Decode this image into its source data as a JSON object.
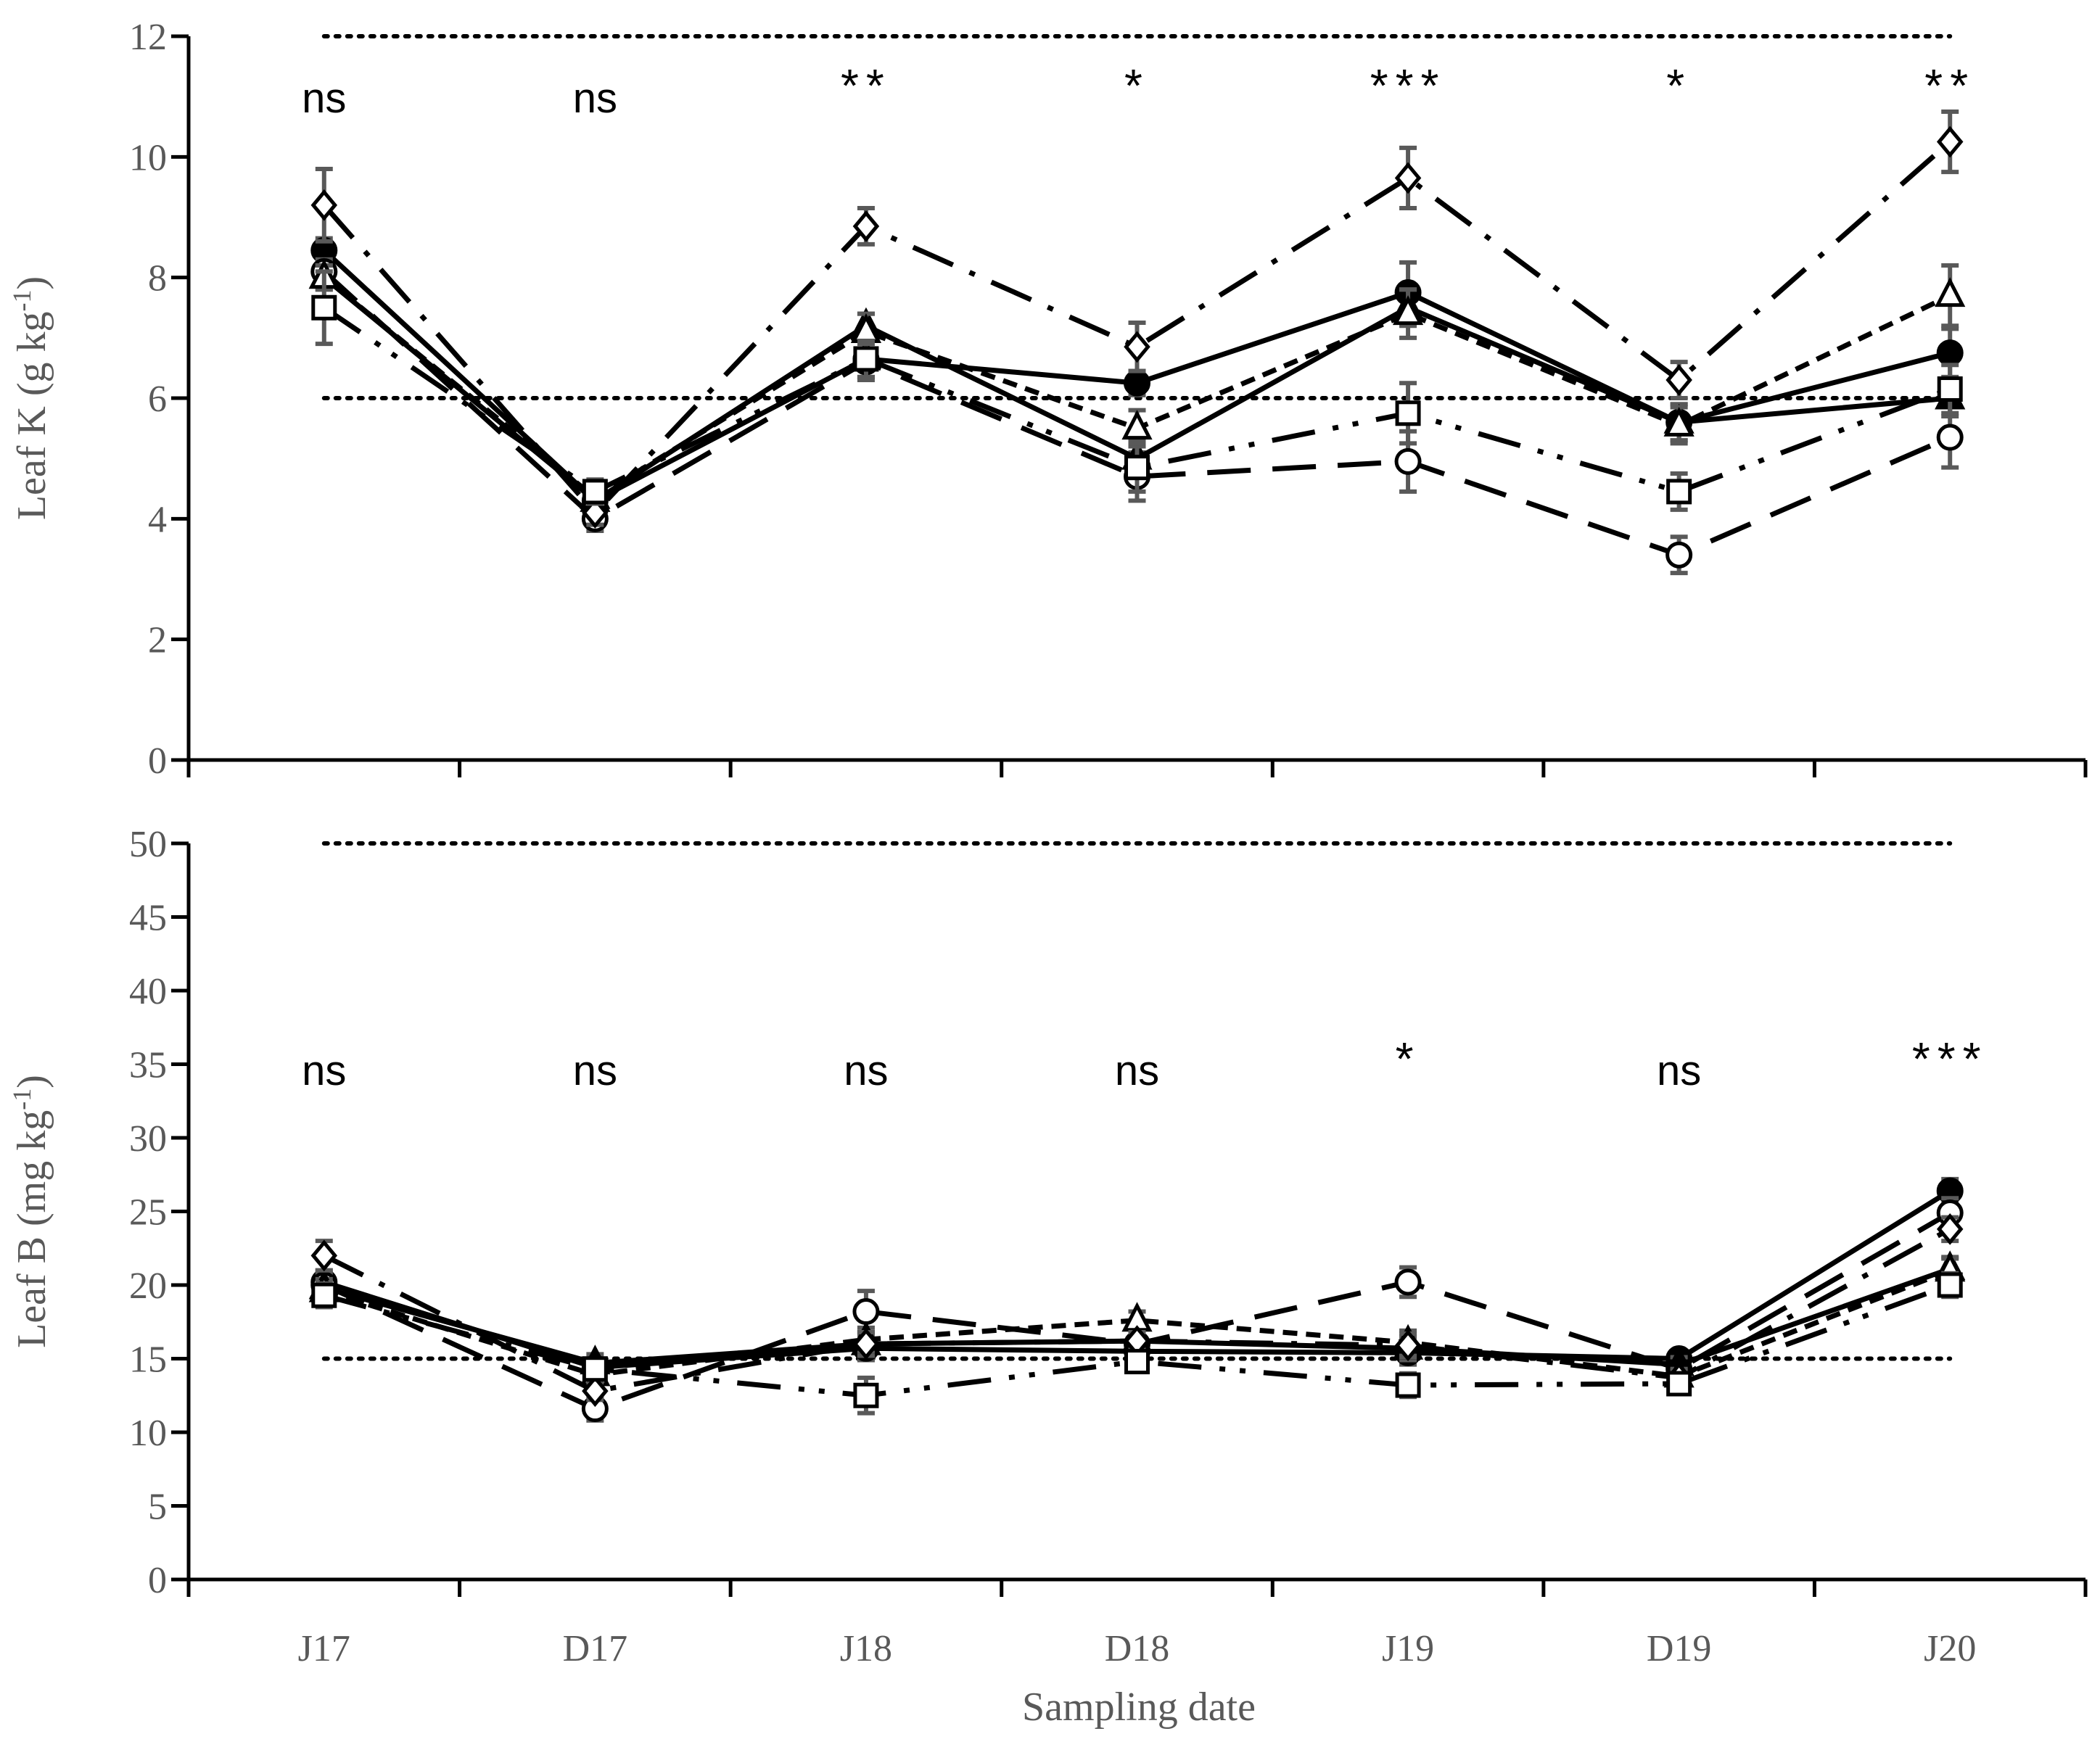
{
  "chart_data": [
    {
      "type": "line",
      "panel": "top",
      "title": "",
      "xlabel": "",
      "ylabel": "Leaf K (g kg",
      "ylabel_sup": "-1",
      "ylabel_close": ")",
      "categories": [
        "J17",
        "D17",
        "J18",
        "D18",
        "J19",
        "D19",
        "J20"
      ],
      "ylim": [
        0,
        12
      ],
      "yticks": [
        0,
        2,
        4,
        6,
        8,
        10,
        12
      ],
      "reference_lines": [
        6,
        12
      ],
      "significance": [
        "ns",
        "ns",
        "**",
        "*",
        "***",
        "*",
        "**"
      ],
      "series": [
        {
          "name": "filled-circle",
          "marker": "circle",
          "filled": true,
          "dash": "",
          "values": [
            8.45,
            4.3,
            6.65,
            6.25,
            7.75,
            5.6,
            6.75
          ],
          "errors": [
            0.2,
            0.2,
            0.3,
            0.2,
            0.5,
            0.3,
            0.4
          ]
        },
        {
          "name": "open-circle",
          "marker": "circle",
          "filled": false,
          "dash": "60,30",
          "values": [
            8.1,
            4.0,
            6.6,
            4.7,
            4.95,
            3.4,
            5.35
          ],
          "errors": [
            0.2,
            0.2,
            0.3,
            0.4,
            0.5,
            0.3,
            0.5
          ]
        },
        {
          "name": "filled-triangle",
          "marker": "triangle",
          "filled": true,
          "dash": "",
          "values": [
            8.0,
            4.3,
            7.2,
            5.0,
            7.5,
            5.6,
            6.0
          ],
          "errors": [
            0.2,
            0.2,
            0.2,
            0.3,
            0.3,
            0.3,
            0.3
          ]
        },
        {
          "name": "open-triangle",
          "marker": "triangle",
          "filled": false,
          "dash": "20,12",
          "values": [
            8.0,
            4.35,
            7.1,
            5.5,
            7.4,
            5.55,
            7.7
          ],
          "errors": [
            0.2,
            0.2,
            0.3,
            0.3,
            0.4,
            0.3,
            0.5
          ]
        },
        {
          "name": "open-diamond",
          "marker": "diamond",
          "filled": false,
          "dash": "60,25,8,25",
          "values": [
            9.2,
            4.1,
            8.85,
            6.85,
            9.65,
            6.3,
            10.25
          ],
          "errors": [
            0.6,
            0.2,
            0.3,
            0.4,
            0.5,
            0.3,
            0.5
          ]
        },
        {
          "name": "open-square",
          "marker": "square",
          "filled": false,
          "dash": "60,25,8,20,8,25",
          "values": [
            7.5,
            4.45,
            6.65,
            4.85,
            5.75,
            4.45,
            6.15
          ],
          "errors": [
            0.6,
            0.2,
            0.3,
            0.4,
            0.5,
            0.3,
            0.4
          ]
        }
      ]
    },
    {
      "type": "line",
      "panel": "bottom",
      "title": "",
      "xlabel": "Sampling date",
      "ylabel": "Leaf B (mg kg",
      "ylabel_sup": "-1",
      "ylabel_close": ")",
      "categories": [
        "J17",
        "D17",
        "J18",
        "D18",
        "J19",
        "D19",
        "J20"
      ],
      "ylim": [
        0,
        50
      ],
      "yticks": [
        0,
        5,
        10,
        15,
        20,
        25,
        30,
        35,
        40,
        45,
        50
      ],
      "reference_lines": [
        15,
        50
      ],
      "significance": [
        "ns",
        "ns",
        "ns",
        "ns",
        "*",
        "ns",
        "***"
      ],
      "series": [
        {
          "name": "filled-circle",
          "marker": "circle",
          "filled": true,
          "dash": "",
          "values": [
            20.2,
            14.4,
            15.7,
            15.5,
            15.4,
            15.0,
            26.4
          ],
          "errors": [
            0.8,
            0.6,
            0.8,
            0.6,
            0.8,
            0.5,
            0.8
          ]
        },
        {
          "name": "open-circle",
          "marker": "circle",
          "filled": false,
          "dash": "60,30",
          "values": [
            20.0,
            11.6,
            18.2,
            16.0,
            20.2,
            14.3,
            24.9
          ],
          "errors": [
            0.8,
            0.8,
            1.4,
            0.8,
            1.0,
            0.6,
            1.0
          ]
        },
        {
          "name": "filled-triangle",
          "marker": "triangle",
          "filled": true,
          "dash": "",
          "values": [
            19.8,
            14.7,
            16.0,
            16.2,
            15.7,
            14.6,
            21.1
          ],
          "errors": [
            0.6,
            0.6,
            0.8,
            0.6,
            0.8,
            0.5,
            0.8
          ]
        },
        {
          "name": "open-triangle",
          "marker": "triangle",
          "filled": false,
          "dash": "20,12",
          "values": [
            19.6,
            13.9,
            16.3,
            17.6,
            16.1,
            13.8,
            21.0
          ],
          "errors": [
            0.6,
            0.6,
            0.8,
            0.6,
            0.8,
            0.5,
            0.8
          ]
        },
        {
          "name": "open-diamond",
          "marker": "diamond",
          "filled": false,
          "dash": "60,25,8,25",
          "values": [
            22.0,
            12.8,
            16.0,
            16.2,
            15.9,
            13.7,
            23.8
          ],
          "errors": [
            1.0,
            0.6,
            0.8,
            0.6,
            0.8,
            0.5,
            0.8
          ]
        },
        {
          "name": "open-square",
          "marker": "square",
          "filled": false,
          "dash": "60,25,8,20,8,25",
          "values": [
            19.3,
            14.3,
            12.5,
            14.8,
            13.2,
            13.3,
            20.0
          ],
          "errors": [
            0.8,
            0.6,
            1.2,
            0.6,
            0.8,
            0.5,
            0.8
          ]
        }
      ]
    }
  ]
}
